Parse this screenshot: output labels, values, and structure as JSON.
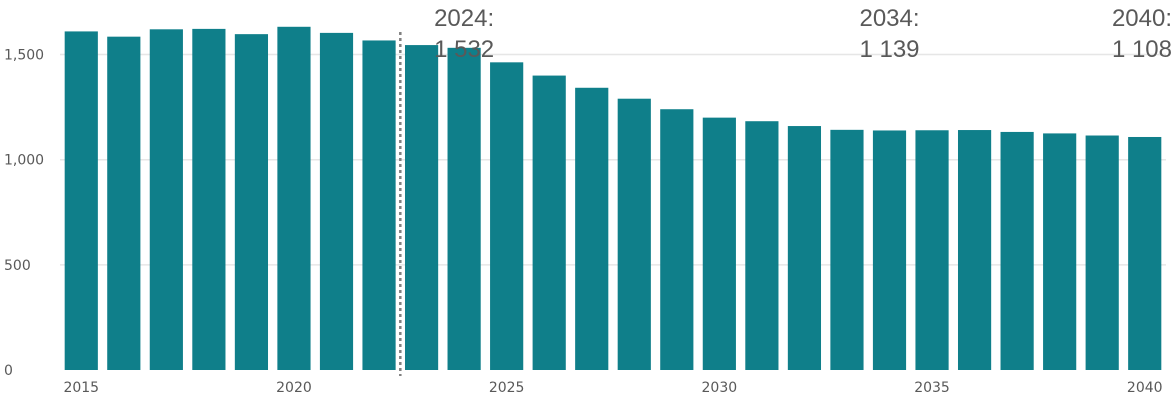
{
  "chart_data": {
    "type": "bar",
    "title": "",
    "xlabel": "",
    "ylabel": "",
    "x": [
      2015,
      2016,
      2017,
      2018,
      2019,
      2020,
      2021,
      2022,
      2023,
      2024,
      2025,
      2026,
      2027,
      2028,
      2029,
      2030,
      2031,
      2032,
      2033,
      2034,
      2035,
      2036,
      2037,
      2038,
      2039,
      2040
    ],
    "values": [
      1610,
      1585,
      1620,
      1622,
      1597,
      1632,
      1603,
      1567,
      1545,
      1532,
      1463,
      1400,
      1342,
      1290,
      1240,
      1200,
      1183,
      1160,
      1142,
      1139,
      1140,
      1141,
      1132,
      1125,
      1115,
      1108
    ],
    "ylim": [
      0,
      1650
    ],
    "y_ticks": [
      {
        "value": 0,
        "label": "0"
      },
      {
        "value": 500,
        "label": "500"
      },
      {
        "value": 1000,
        "label": "1,000"
      },
      {
        "value": 1500,
        "label": "1,500"
      }
    ],
    "x_ticks": [
      {
        "value": 2015,
        "label": "2015"
      },
      {
        "value": 2020,
        "label": "2020"
      },
      {
        "value": 2025,
        "label": "2025"
      },
      {
        "value": 2030,
        "label": "2030"
      },
      {
        "value": 2035,
        "label": "2035"
      },
      {
        "value": 2040,
        "label": "2040"
      }
    ],
    "divider_after": 2022,
    "annotations": [
      {
        "x": 2024,
        "line1": "2024:",
        "line2": "1 532"
      },
      {
        "x": 2034,
        "line1": "2034:",
        "line2": "1 139"
      },
      {
        "x": 2040,
        "line1": "2040:",
        "line2": "1 108"
      }
    ],
    "grid": "horizontal",
    "colors": {
      "bar": "#0f7f8a",
      "grid": "#e6e6e6",
      "divider": "#808080",
      "text": "#595959"
    }
  }
}
